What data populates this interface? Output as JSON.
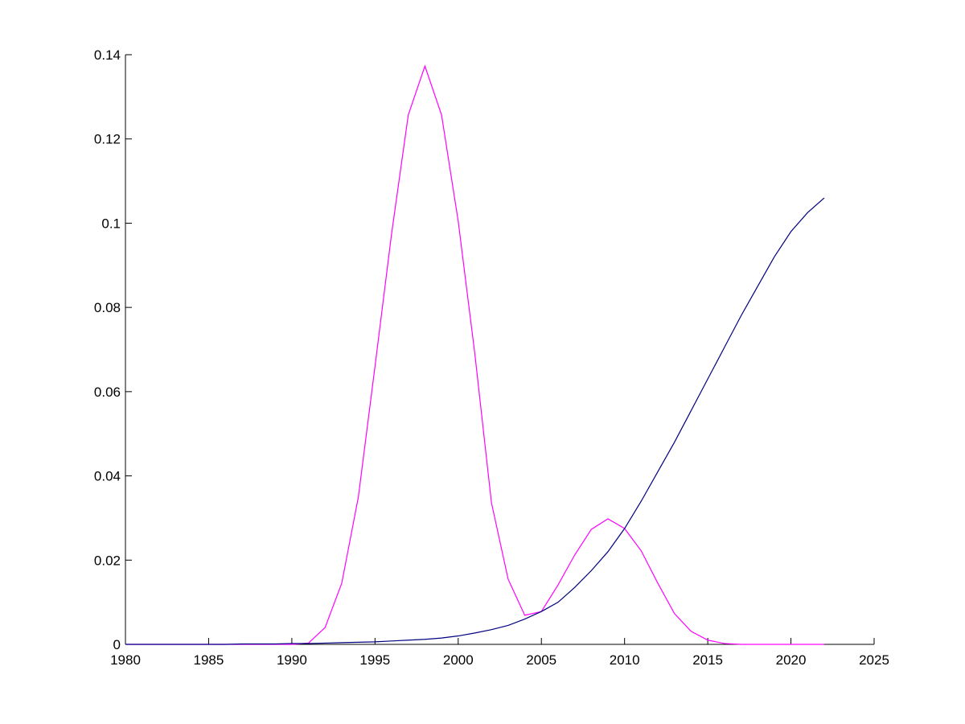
{
  "chart_data": {
    "type": "line",
    "x": [
      1980,
      1981,
      1982,
      1983,
      1984,
      1985,
      1986,
      1987,
      1988,
      1989,
      1990,
      1991,
      1992,
      1993,
      1994,
      1995,
      1996,
      1997,
      1998,
      1999,
      2000,
      2001,
      2002,
      2003,
      2004,
      2005,
      2006,
      2007,
      2008,
      2009,
      2010,
      2011,
      2012,
      2013,
      2014,
      2015,
      2016,
      2017,
      2018,
      2019,
      2020,
      2021,
      2022
    ],
    "series": [
      {
        "color": "#ff00ff",
        "values": [
          0,
          0,
          0,
          0,
          0,
          0,
          0,
          0,
          0,
          0,
          0,
          0.0003,
          0.004,
          0.0145,
          0.035,
          0.066,
          0.0976,
          0.1257,
          0.1373,
          0.1257,
          0.1005,
          0.069,
          0.0336,
          0.0155,
          0.0069,
          0.0078,
          0.0141,
          0.0212,
          0.0273,
          0.0298,
          0.0275,
          0.0222,
          0.0145,
          0.0073,
          0.0031,
          0.001,
          0.0002,
          0,
          0,
          0,
          0,
          0,
          0
        ]
      },
      {
        "color": "#000080",
        "values": [
          0,
          0,
          0,
          0,
          0,
          0,
          0,
          0.0001,
          0.0001,
          0.0001,
          0.0002,
          0.0002,
          0.0003,
          0.0004,
          0.0005,
          0.0006,
          0.0008,
          0.001,
          0.0012,
          0.0015,
          0.002,
          0.0027,
          0.0035,
          0.0045,
          0.006,
          0.0078,
          0.01,
          0.0135,
          0.0175,
          0.022,
          0.0275,
          0.034,
          0.041,
          0.048,
          0.0555,
          0.063,
          0.0705,
          0.078,
          0.085,
          0.092,
          0.098,
          0.1025,
          0.106
        ]
      }
    ],
    "xlim": [
      1980,
      2025
    ],
    "xticks": [
      1980,
      1985,
      1990,
      1995,
      2000,
      2005,
      2010,
      2015,
      2020,
      2025
    ],
    "ylim": [
      0,
      0.14
    ],
    "yticks": [
      0,
      0.02,
      0.04,
      0.06,
      0.08,
      0.1,
      0.12,
      0.14
    ]
  }
}
